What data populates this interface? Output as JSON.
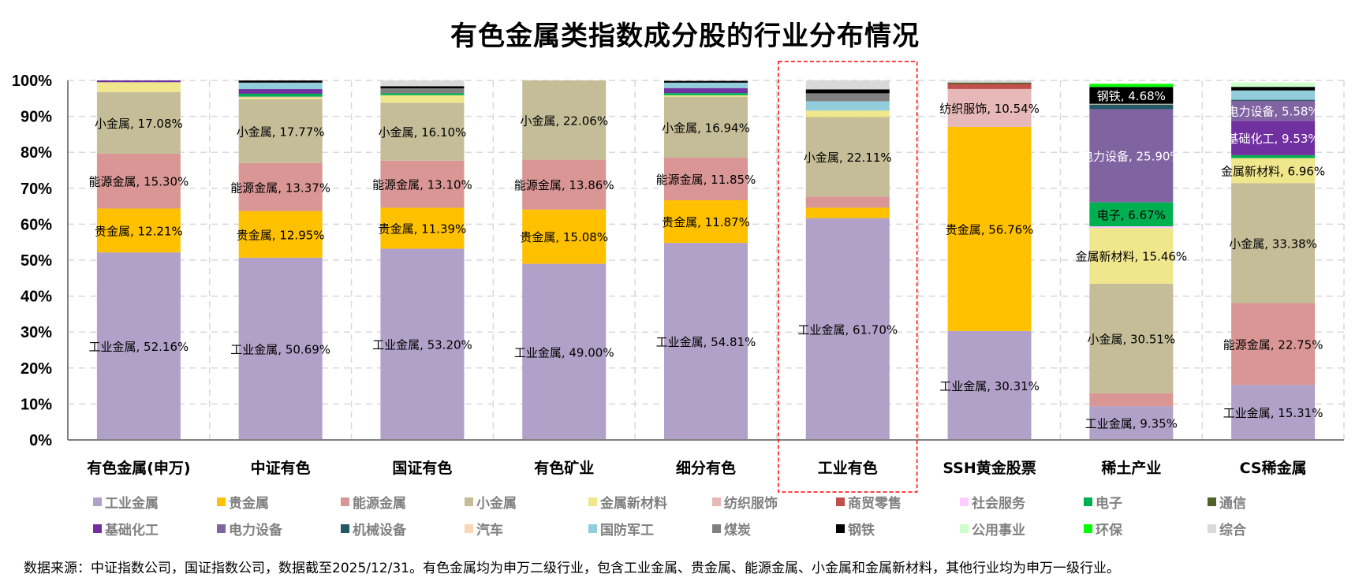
{
  "chart_data": {
    "type": "bar",
    "stacked": true,
    "title": "有色金属类指数成分股的行业分布情况",
    "xlabel": "",
    "ylabel": "",
    "ylim": [
      0,
      100
    ],
    "yticks": [
      "0%",
      "10%",
      "20%",
      "30%",
      "40%",
      "50%",
      "60%",
      "70%",
      "80%",
      "90%",
      "100%"
    ],
    "grid": true,
    "legend_position": "bottom",
    "highlighted_category": "工业有色",
    "categories": [
      "有色金属(申万)",
      "中证有色",
      "国证有色",
      "有色矿业",
      "细分有色",
      "工业有色",
      "SSH黄金股票",
      "稀土产业",
      "CS稀金属"
    ],
    "series": [
      {
        "name": "工业金属",
        "color": "#B1A0C7",
        "values": [
          52.16,
          50.69,
          53.2,
          49.0,
          54.81,
          61.7,
          30.31,
          9.35,
          15.31
        ],
        "labeled": [
          true,
          true,
          true,
          true,
          true,
          true,
          true,
          true,
          true
        ],
        "label_color": "#000000"
      },
      {
        "name": "贵金属",
        "color": "#FFC000",
        "values": [
          12.21,
          12.95,
          11.39,
          15.08,
          11.87,
          2.9,
          56.76,
          0,
          0
        ],
        "labeled": [
          true,
          true,
          true,
          true,
          true,
          false,
          true,
          false,
          false
        ],
        "label_color": "#000000"
      },
      {
        "name": "能源金属",
        "color": "#DA9694",
        "values": [
          15.3,
          13.37,
          13.1,
          13.86,
          11.85,
          3.1,
          0,
          3.6,
          22.75
        ],
        "labeled": [
          true,
          true,
          true,
          true,
          true,
          false,
          false,
          false,
          true
        ],
        "label_color": "#000000"
      },
      {
        "name": "小金属",
        "color": "#C4BD97",
        "values": [
          17.08,
          17.77,
          16.1,
          22.06,
          16.94,
          22.11,
          0,
          30.51,
          33.38
        ],
        "labeled": [
          true,
          true,
          true,
          true,
          true,
          true,
          false,
          true,
          true
        ],
        "label_color": "#000000"
      },
      {
        "name": "金属新材料",
        "color": "#F0E68C",
        "values": [
          2.75,
          0.5,
          2.1,
          0,
          0.4,
          1.8,
          0,
          15.46,
          6.96
        ],
        "labeled": [
          false,
          false,
          false,
          false,
          false,
          false,
          false,
          true,
          true
        ],
        "label_color": "#000000"
      },
      {
        "name": "纺织服饰",
        "color": "#E6B8B7",
        "values": [
          0,
          0.2,
          0,
          0,
          0,
          0,
          10.54,
          0,
          0
        ],
        "labeled": [
          false,
          false,
          false,
          false,
          false,
          false,
          true,
          false,
          false
        ],
        "label_color": "#000000"
      },
      {
        "name": "商贸零售",
        "color": "#C0504D",
        "values": [
          0,
          0,
          0,
          0,
          0,
          0,
          1.4,
          0,
          0
        ],
        "labeled": [
          false,
          false,
          false,
          false,
          false,
          false,
          false,
          false,
          false
        ],
        "label_color": "#000000"
      },
      {
        "name": "社会服务",
        "color": "#FFCCFF",
        "values": [
          0,
          0,
          0,
          0,
          0,
          0,
          0,
          0.5,
          0
        ],
        "labeled": [
          false,
          false,
          false,
          false,
          false,
          false,
          false,
          false,
          false
        ],
        "label_color": "#000000"
      },
      {
        "name": "电子",
        "color": "#00B050",
        "values": [
          0,
          0.8,
          0.5,
          0,
          0.6,
          0,
          0,
          6.67,
          0.8
        ],
        "labeled": [
          false,
          false,
          false,
          false,
          false,
          false,
          false,
          true,
          false
        ],
        "label_color": "#000000"
      },
      {
        "name": "通信",
        "color": "#4F6228",
        "values": [
          0,
          0,
          0,
          0,
          0,
          0,
          0.4,
          0,
          0
        ],
        "labeled": [
          false,
          false,
          false,
          false,
          false,
          false,
          false,
          false,
          false
        ],
        "label_color": "#000000"
      },
      {
        "name": "基础化工",
        "color": "#7030A0",
        "values": [
          0.5,
          1.3,
          0,
          0,
          1.4,
          0,
          0,
          0,
          9.53
        ],
        "labeled": [
          false,
          false,
          false,
          false,
          false,
          false,
          false,
          false,
          true
        ],
        "label_color": "#FFFFFF"
      },
      {
        "name": "电力设备",
        "color": "#8064A2",
        "values": [
          0,
          0,
          0,
          0,
          0,
          0,
          0,
          25.9,
          5.58
        ],
        "labeled": [
          false,
          false,
          false,
          false,
          false,
          false,
          false,
          true,
          true
        ],
        "label_color": "#FFFFFF"
      },
      {
        "name": "机械设备",
        "color": "#215967",
        "values": [
          0,
          0,
          0,
          0,
          0,
          0,
          0,
          1.3,
          0.3
        ],
        "labeled": [
          false,
          false,
          false,
          false,
          false,
          false,
          false,
          false,
          false
        ],
        "label_color": "#FFFFFF"
      },
      {
        "name": "汽车",
        "color": "#FCD5B4",
        "values": [
          0,
          0,
          0,
          0,
          0,
          0,
          0,
          0.2,
          0
        ],
        "labeled": [
          false,
          false,
          false,
          false,
          false,
          false,
          false,
          false,
          false
        ],
        "label_color": "#000000"
      },
      {
        "name": "国防军工",
        "color": "#92CDDC",
        "values": [
          0,
          1.8,
          0,
          0,
          1.5,
          2.6,
          0,
          0,
          2.6
        ],
        "labeled": [
          false,
          false,
          false,
          false,
          false,
          false,
          false,
          false,
          false
        ],
        "label_color": "#000000"
      },
      {
        "name": "煤炭",
        "color": "#808080",
        "values": [
          0,
          0,
          1.4,
          0,
          0,
          2.2,
          0,
          0,
          0
        ],
        "labeled": [
          false,
          false,
          false,
          false,
          false,
          false,
          false,
          false,
          false
        ],
        "label_color": "#000000"
      },
      {
        "name": "钢铁",
        "color": "#000000",
        "values": [
          0,
          0.6,
          0.6,
          0,
          0.5,
          1.1,
          0,
          4.68,
          1.0
        ],
        "labeled": [
          false,
          false,
          false,
          false,
          false,
          false,
          false,
          true,
          false
        ],
        "label_color": "#FFFFFF"
      },
      {
        "name": "公用事业",
        "color": "#CCFFCC",
        "values": [
          0,
          0,
          0,
          0,
          0,
          0,
          0,
          0,
          1.2
        ],
        "labeled": [
          false,
          false,
          false,
          false,
          false,
          false,
          false,
          false,
          false
        ],
        "label_color": "#000000"
      },
      {
        "name": "环保",
        "color": "#00FF00",
        "values": [
          0,
          0,
          0,
          0,
          0,
          0,
          0,
          0.9,
          0
        ],
        "labeled": [
          false,
          false,
          false,
          false,
          false,
          false,
          false,
          false,
          false
        ],
        "label_color": "#000000"
      },
      {
        "name": "综合",
        "color": "#D9D9D9",
        "values": [
          0,
          0,
          1.6,
          0,
          0,
          2.5,
          0.6,
          0,
          0
        ],
        "labeled": [
          false,
          false,
          false,
          false,
          false,
          false,
          false,
          false,
          false
        ],
        "label_color": "#000000"
      }
    ]
  },
  "footer": "数据来源：中证指数公司，国证指数公司，数据截至2025/12/31。有色金属均为申万二级行业，包含工业金属、贵金属、能源金属、小金属和金属新材料，其他行业均为申万一级行业。"
}
